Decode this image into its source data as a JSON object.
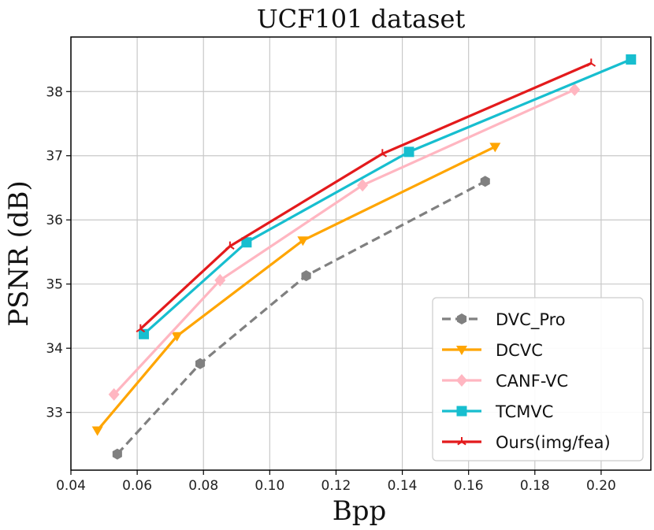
{
  "chart_data": {
    "type": "line",
    "title": "UCF101 dataset",
    "xlabel": "Bpp",
    "ylabel": "PSNR (dB)",
    "xlim": [
      0.04,
      0.215
    ],
    "ylim": [
      32.1,
      38.85
    ],
    "xticks": [
      0.04,
      0.06,
      0.08,
      0.1,
      0.12,
      0.14,
      0.16,
      0.18,
      0.2
    ],
    "xtick_labels": [
      "0.04",
      "0.06",
      "0.08",
      "0.10",
      "0.12",
      "0.14",
      "0.16",
      "0.18",
      "0.20"
    ],
    "yticks": [
      33,
      34,
      35,
      36,
      37,
      38
    ],
    "ytick_labels": [
      "33",
      "34",
      "35",
      "36",
      "37",
      "38"
    ],
    "grid": true,
    "legend_position": "lower-right",
    "series": [
      {
        "name": "DVC_Pro",
        "color": "#808080",
        "dash": "dashed",
        "marker": "hexagon",
        "x": [
          0.054,
          0.079,
          0.111,
          0.165
        ],
        "y": [
          32.35,
          33.76,
          35.13,
          36.6
        ]
      },
      {
        "name": "DCVC",
        "color": "#ffa500",
        "dash": "solid",
        "marker": "triangle-down",
        "x": [
          0.048,
          0.072,
          0.11,
          0.168
        ],
        "y": [
          32.72,
          34.19,
          35.68,
          37.14
        ]
      },
      {
        "name": "CANF-VC",
        "color": "#ffb6c1",
        "dash": "solid",
        "marker": "diamond",
        "x": [
          0.053,
          0.085,
          0.128,
          0.192
        ],
        "y": [
          33.28,
          35.06,
          36.54,
          38.03
        ]
      },
      {
        "name": "TCMVC",
        "color": "#17becf",
        "dash": "solid",
        "marker": "square",
        "x": [
          0.062,
          0.093,
          0.142,
          0.209
        ],
        "y": [
          34.22,
          35.65,
          37.06,
          38.5
        ]
      },
      {
        "name": "Ours(img/fea)",
        "color": "#e31a1c",
        "dash": "solid",
        "marker": "tri",
        "x": [
          0.061,
          0.088,
          0.134,
          0.197
        ],
        "y": [
          34.3,
          35.59,
          37.03,
          38.44
        ]
      }
    ]
  }
}
